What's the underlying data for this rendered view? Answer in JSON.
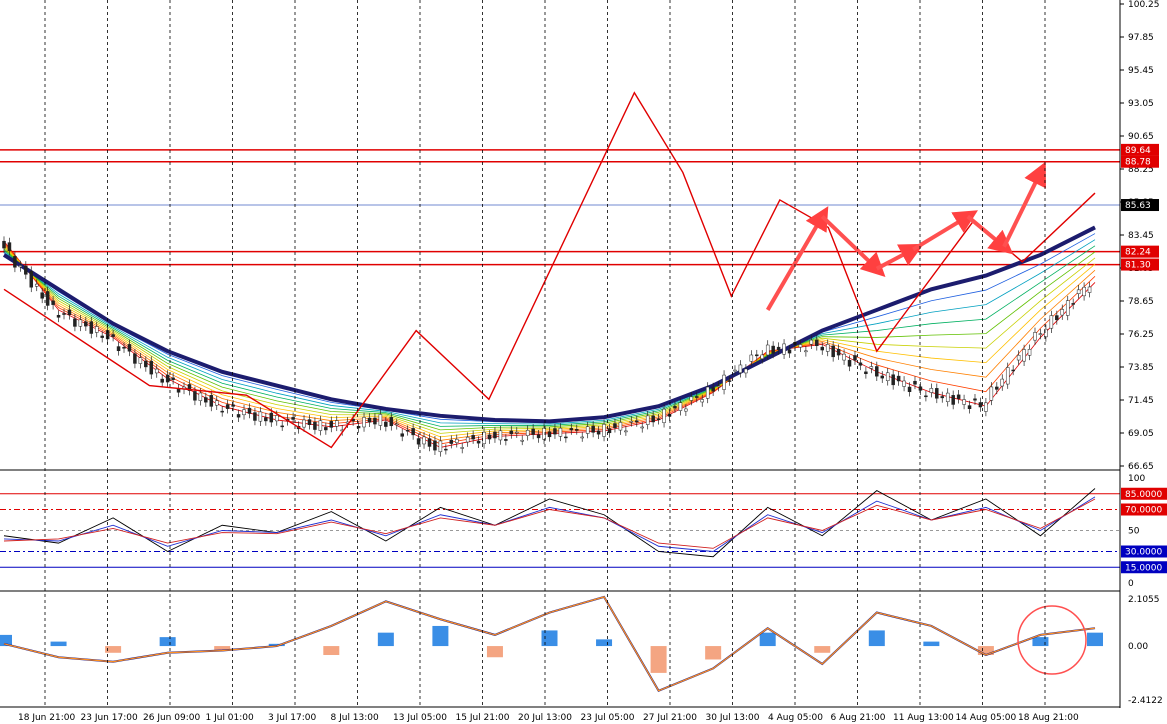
{
  "chart_data": [
    {
      "type": "candlestick",
      "panel": "price",
      "ylim": [
        66.65,
        100.25
      ],
      "yticks": [
        "100.25",
        "97.85",
        "95.45",
        "93.05",
        "90.65",
        "88.25",
        "85.85",
        "83.45",
        "81.05",
        "78.65",
        "76.25",
        "73.85",
        "71.45",
        "69.05",
        "66.65"
      ],
      "xticks": [
        "18 Jun 21:00",
        "23 Jun 17:00",
        "26 Jun 09:00",
        "1 Jul 01:00",
        "3 Jul 17:00",
        "8 Jul 13:00",
        "13 Jul 05:00",
        "15 Jul 21:00",
        "20 Jul 13:00",
        "23 Jul 05:00",
        "27 Jul 21:00",
        "30 Jul 13:00",
        "4 Aug 05:00",
        "6 Aug 21:00",
        "11 Aug 13:00",
        "14 Aug 05:00",
        "18 Aug 21:00"
      ],
      "x": [
        0,
        10,
        20,
        30,
        40,
        50,
        60,
        70,
        80,
        90,
        100,
        110,
        120,
        130,
        140,
        150,
        160,
        170,
        180,
        190,
        200
      ],
      "close": [
        83,
        78,
        76,
        73,
        71,
        70,
        69.5,
        70,
        68,
        68.8,
        69,
        69.2,
        70,
        72,
        75,
        75.5,
        73.5,
        72,
        71,
        76,
        80
      ],
      "ma_slow": [
        82,
        79.5,
        77,
        75,
        73.5,
        72.5,
        71.5,
        70.8,
        70.3,
        70,
        69.9,
        70.2,
        71,
        72.5,
        74.5,
        76.5,
        78,
        79.5,
        80.5,
        82,
        84
      ],
      "horizontal_levels": [
        {
          "label": "89.64",
          "value": 89.64,
          "color": "#e00000"
        },
        {
          "label": "88.78",
          "value": 88.78,
          "color": "#e00000"
        },
        {
          "label": "85.63",
          "value": 85.63,
          "color": "#4060c0"
        },
        {
          "label": "82.24",
          "value": 82.24,
          "color": "#e00000"
        },
        {
          "label": "81.30",
          "value": 81.3,
          "color": "#e00000"
        }
      ],
      "zigzag": [
        [
          0,
          79.5
        ],
        [
          12,
          72.5
        ],
        [
          20,
          71.8
        ],
        [
          27,
          68
        ],
        [
          34,
          76.5
        ],
        [
          40,
          71.5
        ],
        [
          52,
          93.8
        ],
        [
          56,
          88
        ],
        [
          60,
          79
        ],
        [
          64,
          86
        ],
        [
          68,
          84
        ],
        [
          72,
          75
        ],
        [
          80,
          84.5
        ],
        [
          84,
          81.5
        ],
        [
          90,
          86.5
        ]
      ],
      "current_price": "85.63"
    },
    {
      "type": "line",
      "panel": "oscillator",
      "ylim": [
        0,
        100
      ],
      "yticks": [
        "100",
        "50",
        "0"
      ],
      "levels": [
        {
          "label": "85.0000",
          "value": 85,
          "color": "#e00000"
        },
        {
          "label": "70.0000",
          "value": 70,
          "color": "#e00000"
        },
        {
          "label": "30.0000",
          "value": 30,
          "color": "#0000c0"
        },
        {
          "label": "15.0000",
          "value": 15,
          "color": "#0000c0"
        }
      ],
      "series": [
        {
          "values": [
            45,
            38,
            62,
            30,
            55,
            48,
            68,
            40,
            72,
            55,
            80,
            65,
            30,
            25,
            72,
            45,
            88,
            60,
            80,
            45,
            90
          ]
        },
        {
          "values": [
            42,
            40,
            55,
            35,
            50,
            48,
            60,
            45,
            65,
            55,
            72,
            62,
            35,
            30,
            65,
            48,
            78,
            60,
            72,
            50,
            82
          ]
        },
        {
          "values": [
            40,
            42,
            52,
            38,
            48,
            47,
            58,
            47,
            62,
            55,
            70,
            62,
            38,
            33,
            62,
            50,
            74,
            60,
            70,
            52,
            80
          ]
        }
      ]
    },
    {
      "type": "bar",
      "panel": "macd",
      "ylim": [
        -2.4122,
        2.1055
      ],
      "yticks": [
        "2.1055",
        "0.00",
        "-2.4122"
      ],
      "histogram": [
        0.5,
        0.2,
        -0.3,
        0.4,
        -0.2,
        0.1,
        -0.4,
        0.6,
        0.9,
        -0.5,
        0.7,
        0.3,
        -1.2,
        -0.6,
        0.6,
        -0.3,
        0.7,
        0.2,
        -0.4,
        0.4,
        0.6
      ],
      "signal": [
        0.1,
        -0.5,
        -0.7,
        -0.3,
        -0.2,
        0,
        0.9,
        2,
        1.2,
        0.5,
        1.5,
        2.2,
        -2,
        -1,
        0.8,
        -0.8,
        1.5,
        0.9,
        -0.4,
        0.5,
        0.8
      ]
    }
  ]
}
